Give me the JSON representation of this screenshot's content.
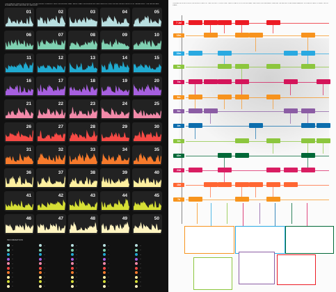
{
  "left_panel": {
    "header_text": "THIS GRAPHIC WAS DEVELOPED BY THE BROWSING COMMUNITY AND THE ENGINE TEAM - EACH CHART SHOWS A MONITORED SERVICE OVER THE RECORDED PERIOD FOR THE ARCHIVE - THE VALUES ARE NORMALISED AND GROUPED BY CATEGORY",
    "cells": [
      {
        "label": "01"
      },
      {
        "label": "02"
      },
      {
        "label": "03"
      },
      {
        "label": "04"
      },
      {
        "label": "05"
      },
      {
        "label": "06"
      },
      {
        "label": "07"
      },
      {
        "label": "08"
      },
      {
        "label": "09"
      },
      {
        "label": "10"
      },
      {
        "label": "11"
      },
      {
        "label": "12"
      },
      {
        "label": "13"
      },
      {
        "label": "14"
      },
      {
        "label": "15"
      },
      {
        "label": "16"
      },
      {
        "label": "17"
      },
      {
        "label": "18"
      },
      {
        "label": "19"
      },
      {
        "label": "20"
      },
      {
        "label": "21"
      },
      {
        "label": "22"
      },
      {
        "label": "23"
      },
      {
        "label": "24"
      },
      {
        "label": "25"
      },
      {
        "label": "26"
      },
      {
        "label": "27"
      },
      {
        "label": "28"
      },
      {
        "label": "29"
      },
      {
        "label": "30"
      },
      {
        "label": "31"
      },
      {
        "label": "32"
      },
      {
        "label": "33"
      },
      {
        "label": "34"
      },
      {
        "label": "35"
      },
      {
        "label": "36"
      },
      {
        "label": "37"
      },
      {
        "label": "38"
      },
      {
        "label": "39"
      },
      {
        "label": "40"
      },
      {
        "label": "41"
      },
      {
        "label": "42"
      },
      {
        "label": "43"
      },
      {
        "label": "44"
      },
      {
        "label": "45"
      },
      {
        "label": "46"
      },
      {
        "label": "47"
      },
      {
        "label": "48"
      },
      {
        "label": "49"
      },
      {
        "label": "50"
      }
    ],
    "rows": [
      {
        "color": "#b8dfe0"
      },
      {
        "color": "#7fd1b1"
      },
      {
        "color": "#20aad0"
      },
      {
        "color": "#a65fe0"
      },
      {
        "color": "#f28aa9"
      },
      {
        "color": "#f74a45"
      },
      {
        "color": "#f77a2b"
      },
      {
        "color": "#fff0a0"
      },
      {
        "color": "#d6df35"
      },
      {
        "color": "#fff4c0"
      }
    ],
    "legend_title": "INFORMATION",
    "legend_text": "—"
  },
  "right_panel": {
    "header_text": "THIS ARCHIVE RECORDS THE MILESTONES OF THE PROJECT OVER TIME - EACH TRACK FOLLOWS A TEAM THROUGH THE RELEASE TIMELINE - ACHIEVED GOALS ARE MARKED WITH A BOX AND CONNECTED BY LINES",
    "row_tags": [
      {
        "label": "7 Jul",
        "color": "#ec1b24"
      },
      {
        "label": "12m",
        "color": "#f7931e"
      },
      {
        "label": "10m",
        "color": "#29a9e1"
      },
      {
        "label": "9m",
        "color": "#8cc63e"
      },
      {
        "label": "7m",
        "color": "#d4145a"
      },
      {
        "label": "6m",
        "color": "#f7931e"
      },
      {
        "label": "5m",
        "color": "#8b5ca4"
      },
      {
        "label": "4m",
        "color": "#0c6dad"
      },
      {
        "label": "3m",
        "color": "#8cc63e"
      },
      {
        "label": "42m",
        "color": "#006837"
      },
      {
        "label": "24d",
        "color": "#d91d62"
      },
      {
        "label": "18d",
        "color": "#ff6633"
      },
      {
        "label": "7d",
        "color": "#f7941d"
      }
    ]
  }
}
